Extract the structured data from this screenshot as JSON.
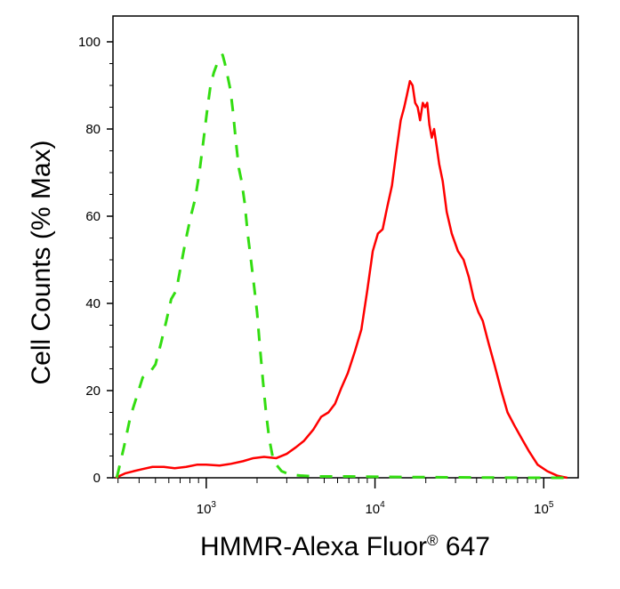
{
  "chart_data": {
    "type": "line",
    "xlabel": "HMMR-Alexa Fluor",
    "xlabel_superscript": "®",
    "xlabel_suffix": " 647",
    "ylabel": "Cell Counts (% Max)",
    "x_scale": "log",
    "xlim": [
      280,
      160000
    ],
    "ylim": [
      0,
      100
    ],
    "x_ticks": [
      {
        "base": "10",
        "exp": "3",
        "value": 1000
      },
      {
        "base": "10",
        "exp": "4",
        "value": 10000
      },
      {
        "base": "10",
        "exp": "5",
        "value": 100000
      }
    ],
    "y_ticks": [
      {
        "label": "0",
        "value": 0
      },
      {
        "label": "20",
        "value": 20
      },
      {
        "label": "40",
        "value": 40
      },
      {
        "label": "60",
        "value": 60
      },
      {
        "label": "80",
        "value": 80
      },
      {
        "label": "100",
        "value": 100
      }
    ],
    "grid": false,
    "legend": "none",
    "series": [
      {
        "color": "#ff0000",
        "dash": "solid",
        "points": [
          [
            290,
            0
          ],
          [
            330,
            1
          ],
          [
            370,
            1.5
          ],
          [
            420,
            2
          ],
          [
            480,
            2.5
          ],
          [
            560,
            2.5
          ],
          [
            650,
            2.2
          ],
          [
            760,
            2.5
          ],
          [
            880,
            3
          ],
          [
            1000,
            3
          ],
          [
            1200,
            2.8
          ],
          [
            1400,
            3.2
          ],
          [
            1650,
            3.8
          ],
          [
            1900,
            4.5
          ],
          [
            2200,
            4.8
          ],
          [
            2600,
            4.5
          ],
          [
            3000,
            5.5
          ],
          [
            3400,
            7
          ],
          [
            3800,
            8.5
          ],
          [
            4300,
            11
          ],
          [
            4800,
            14
          ],
          [
            5300,
            15
          ],
          [
            5800,
            17
          ],
          [
            6300,
            20.5
          ],
          [
            6900,
            24
          ],
          [
            7600,
            29
          ],
          [
            8300,
            34
          ],
          [
            9000,
            43
          ],
          [
            9700,
            52
          ],
          [
            10400,
            56
          ],
          [
            11100,
            57
          ],
          [
            11800,
            62
          ],
          [
            12600,
            67
          ],
          [
            13400,
            75
          ],
          [
            14200,
            82
          ],
          [
            14900,
            85
          ],
          [
            15500,
            88
          ],
          [
            16100,
            91
          ],
          [
            16700,
            90
          ],
          [
            17300,
            86
          ],
          [
            17900,
            85
          ],
          [
            18500,
            82
          ],
          [
            19200,
            86
          ],
          [
            19800,
            85
          ],
          [
            20400,
            86
          ],
          [
            21000,
            81
          ],
          [
            21700,
            78
          ],
          [
            22400,
            80
          ],
          [
            23200,
            76
          ],
          [
            24000,
            72
          ],
          [
            25200,
            68
          ],
          [
            26600,
            61
          ],
          [
            28500,
            56
          ],
          [
            31000,
            52
          ],
          [
            33500,
            50
          ],
          [
            36000,
            46
          ],
          [
            38500,
            41
          ],
          [
            41000,
            38
          ],
          [
            43500,
            36
          ],
          [
            47000,
            31
          ],
          [
            51000,
            26
          ],
          [
            56000,
            20
          ],
          [
            61000,
            15
          ],
          [
            67000,
            12
          ],
          [
            74000,
            9
          ],
          [
            82000,
            6
          ],
          [
            92000,
            3
          ],
          [
            105000,
            1.5
          ],
          [
            120000,
            0.5
          ],
          [
            138000,
            0
          ]
        ]
      },
      {
        "color": "#33dd11",
        "dash": "dashed",
        "points": [
          [
            295,
            0
          ],
          [
            325,
            7
          ],
          [
            355,
            14
          ],
          [
            390,
            19
          ],
          [
            420,
            23
          ],
          [
            460,
            24
          ],
          [
            500,
            26
          ],
          [
            540,
            31
          ],
          [
            580,
            36
          ],
          [
            620,
            41
          ],
          [
            665,
            43
          ],
          [
            710,
            49
          ],
          [
            760,
            55
          ],
          [
            810,
            60
          ],
          [
            860,
            64
          ],
          [
            910,
            70
          ],
          [
            960,
            77
          ],
          [
            1010,
            84
          ],
          [
            1060,
            90
          ],
          [
            1110,
            93
          ],
          [
            1160,
            95
          ],
          [
            1210,
            96.5
          ],
          [
            1250,
            97
          ],
          [
            1290,
            95
          ],
          [
            1340,
            92
          ],
          [
            1390,
            89
          ],
          [
            1440,
            84
          ],
          [
            1500,
            77
          ],
          [
            1560,
            71
          ],
          [
            1620,
            68
          ],
          [
            1690,
            63
          ],
          [
            1760,
            56
          ],
          [
            1840,
            50
          ],
          [
            1920,
            44
          ],
          [
            2000,
            38
          ],
          [
            2080,
            30
          ],
          [
            2170,
            22
          ],
          [
            2260,
            15
          ],
          [
            2360,
            9
          ],
          [
            2470,
            5
          ],
          [
            2600,
            3
          ],
          [
            2800,
            1.5
          ],
          [
            3100,
            0.8
          ],
          [
            3600,
            0.5
          ],
          [
            4500,
            0.3
          ],
          [
            7000,
            0.3
          ],
          [
            12000,
            0.2
          ],
          [
            30000,
            0.1
          ],
          [
            80000,
            0
          ],
          [
            150000,
            0
          ]
        ]
      }
    ]
  }
}
